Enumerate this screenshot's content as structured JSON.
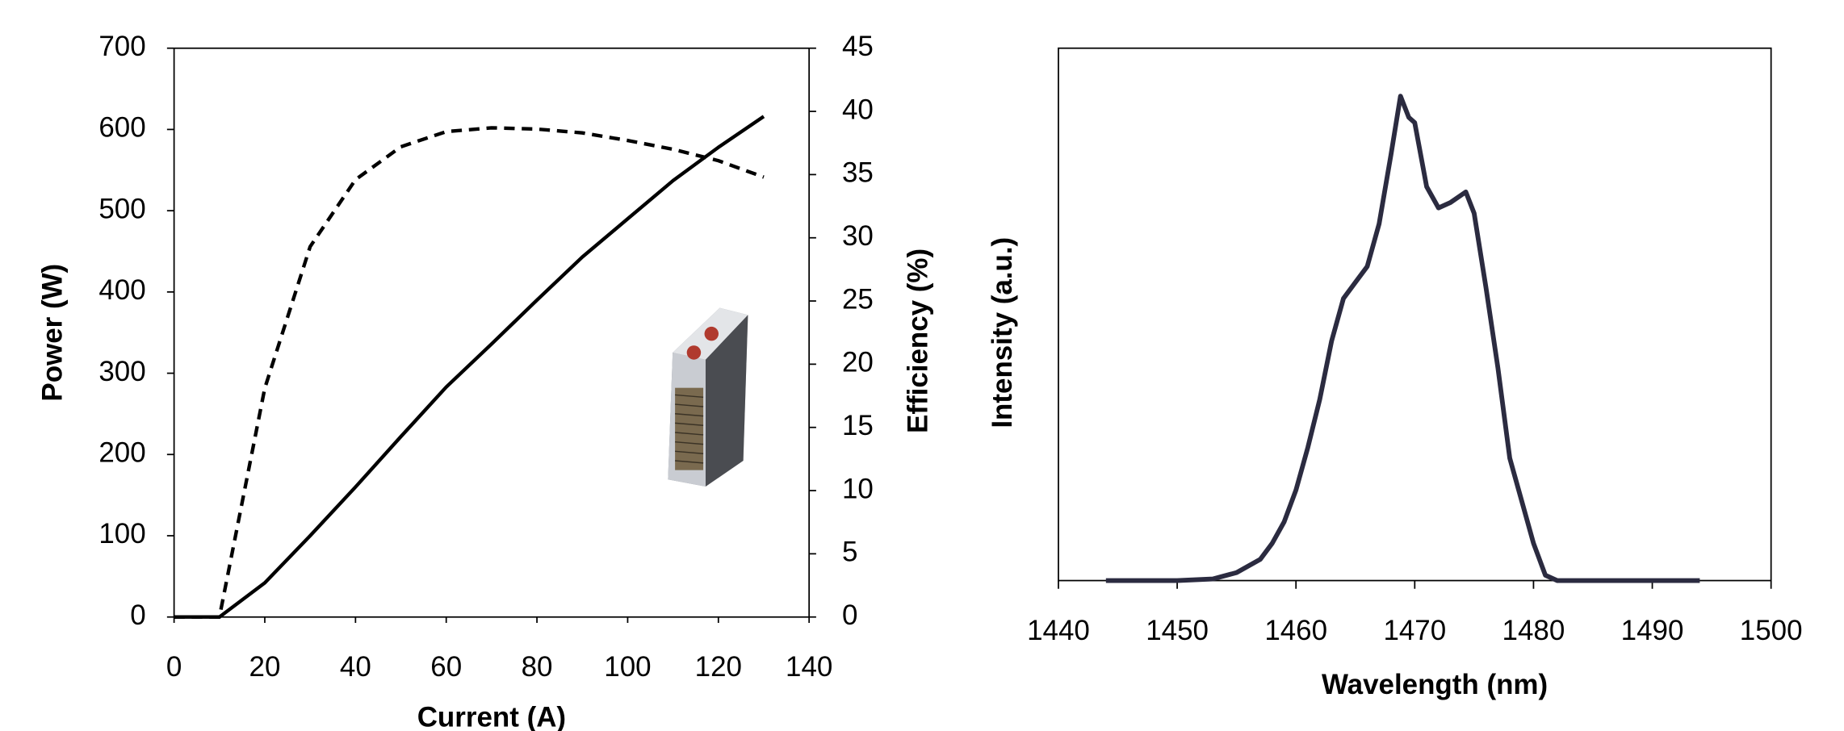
{
  "chart_data": [
    {
      "type": "line",
      "x_label": "Current (A)",
      "y_label": "Power (W)",
      "y2_label": "Efficiency (%)",
      "x": [
        0,
        10,
        20,
        30,
        40,
        50,
        60,
        70,
        80,
        90,
        100,
        110,
        120,
        130
      ],
      "series": [
        {
          "color": "#000000",
          "line_style": "solid",
          "values": [
            0,
            0,
            42,
            100,
            160,
            222,
            283,
            336,
            390,
            443,
            490,
            537,
            578,
            616
          ]
        },
        {
          "color": "#000000",
          "line_style": "dashed",
          "axis": "y2",
          "values": [
            0,
            0,
            18.1,
            29.3,
            34.6,
            37.2,
            38.4,
            38.7,
            38.6,
            38.3,
            37.7,
            37.0,
            36.1,
            34.8
          ]
        }
      ],
      "xlim": [
        0,
        140
      ],
      "xticks": [
        0,
        20,
        40,
        60,
        80,
        100,
        120,
        140
      ],
      "ylim": [
        0,
        700
      ],
      "yticks": [
        0,
        100,
        200,
        300,
        400,
        500,
        600,
        700
      ],
      "y2lim": [
        0,
        45
      ],
      "y2ticks": [
        0,
        5,
        10,
        15,
        20,
        25,
        30,
        35,
        40,
        45
      ]
    },
    {
      "type": "line",
      "x_label": "Wavelength (nm)",
      "y_label": "Intensity (a.u.)",
      "x": [
        1444,
        1450,
        1453,
        1455,
        1457,
        1458,
        1459,
        1460,
        1461,
        1462,
        1463,
        1464,
        1465,
        1466,
        1467,
        1468,
        1468.8,
        1469.5,
        1470,
        1471,
        1472,
        1473,
        1474.3,
        1475,
        1476,
        1477,
        1478,
        1479,
        1480,
        1481,
        1482,
        1494
      ],
      "series": [
        {
          "color": "#2b2b40",
          "line_style": "solid",
          "values": [
            0,
            0,
            0.003,
            0.015,
            0.04,
            0.07,
            0.11,
            0.17,
            0.25,
            0.34,
            0.45,
            0.53,
            0.56,
            0.59,
            0.67,
            0.8,
            0.91,
            0.87,
            0.86,
            0.74,
            0.7,
            0.71,
            0.73,
            0.69,
            0.55,
            0.4,
            0.23,
            0.15,
            0.07,
            0.01,
            0,
            0
          ]
        }
      ],
      "xlim": [
        1440,
        1500
      ],
      "xticks": [
        1440,
        1450,
        1460,
        1470,
        1480,
        1490,
        1500
      ],
      "ylim": [
        0,
        1
      ]
    }
  ]
}
